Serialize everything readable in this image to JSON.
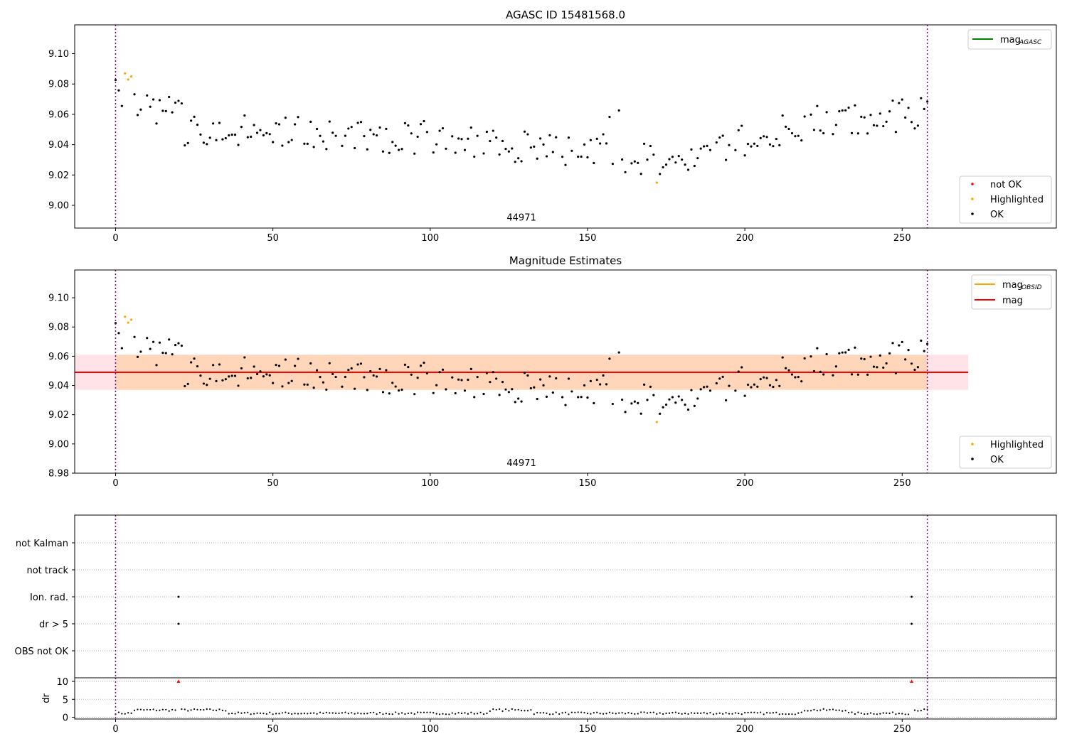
{
  "chart_data": [
    {
      "type": "scatter",
      "title": "AGASC ID 15481568.0",
      "xlim": [
        -13,
        299
      ],
      "ylim": [
        8.985,
        9.119
      ],
      "xticks": [
        0,
        50,
        100,
        150,
        200,
        250
      ],
      "yticks": [
        9.0,
        9.02,
        9.04,
        9.06,
        9.08,
        9.1
      ],
      "ytick_labels": [
        "9.00",
        "9.02",
        "9.04",
        "9.06",
        "9.08",
        "9.10"
      ],
      "vlines": [
        0,
        258
      ],
      "annotation": {
        "text": "44971",
        "x": 129,
        "y": 8.989
      },
      "legend_top": {
        "placement": "upper right",
        "entries": [
          {
            "label": "mag",
            "sub": "AGASC",
            "color": "#008000"
          }
        ]
      },
      "legend_bottom": {
        "placement": "lower right",
        "entries": [
          {
            "label": "not OK",
            "color": "#ff0000"
          },
          {
            "label": "Highlighted",
            "color": "#ffa500"
          },
          {
            "label": "OK",
            "color": "#000000"
          }
        ]
      },
      "series": [
        {
          "name": "Highlighted",
          "color": "#ffa500",
          "x": [
            3,
            4,
            5,
            172
          ],
          "y": [
            9.087,
            9.083,
            9.085,
            9.015
          ]
        }
      ]
    },
    {
      "type": "scatter",
      "title": "Magnitude Estimates",
      "xlim": [
        -13,
        299
      ],
      "ylim": [
        8.98,
        9.119
      ],
      "xticks": [
        0,
        50,
        100,
        150,
        200,
        250
      ],
      "yticks": [
        8.98,
        9.0,
        9.02,
        9.04,
        9.06,
        9.08,
        9.1
      ],
      "ytick_labels": [
        "8.98",
        "9.00",
        "9.02",
        "9.04",
        "9.06",
        "9.08",
        "9.10"
      ],
      "vlines": [
        0,
        258
      ],
      "annotation": {
        "text": "44971",
        "x": 129,
        "y": 8.984
      },
      "mag_line": {
        "value": 9.049,
        "color": "#ff0000",
        "x_range": [
          -13,
          271
        ]
      },
      "mag_band": {
        "low": 9.037,
        "high": 9.061,
        "x_range": [
          -13,
          271
        ],
        "color": "#ffc0cb"
      },
      "obsid_band": {
        "low": 9.037,
        "high": 9.061,
        "x_range": [
          0,
          258
        ],
        "color": "#ffa500"
      },
      "legend_top": {
        "placement": "upper right",
        "entries": [
          {
            "label": "mag",
            "sub": "OBSID",
            "color": "#ffa500"
          },
          {
            "label": "mag",
            "sub": "",
            "color": "#ff0000"
          }
        ]
      },
      "legend_bottom": {
        "placement": "lower right",
        "entries": [
          {
            "label": "Highlighted",
            "color": "#ffa500"
          },
          {
            "label": "OK",
            "color": "#000000"
          }
        ]
      },
      "series": [
        {
          "name": "Highlighted",
          "color": "#ffa500",
          "x": [
            3,
            4,
            5,
            172
          ],
          "y": [
            9.087,
            9.083,
            9.085,
            9.015
          ]
        }
      ]
    },
    {
      "type": "scatter",
      "title": "",
      "xlim": [
        -13,
        299
      ],
      "flag_levels": [
        "not Kalman",
        "not track",
        "Ion. rad.",
        "dr > 5",
        "OBS not OK"
      ],
      "vlines": [
        0,
        258
      ],
      "flags": [
        {
          "level": "Ion. rad.",
          "x": [
            20,
            253
          ]
        },
        {
          "level": "dr > 5",
          "x": [
            20,
            253
          ]
        }
      ]
    },
    {
      "type": "scatter",
      "title": "",
      "ylabel": "dr",
      "xlim": [
        -13,
        299
      ],
      "ylim": [
        -0.5,
        11
      ],
      "xticks": [
        0,
        50,
        100,
        150,
        200,
        250
      ],
      "yticks": [
        0,
        5,
        10
      ],
      "vlines": [
        0,
        258
      ],
      "outliers": {
        "color": "#ff0000",
        "x": [
          20,
          253
        ],
        "y": [
          10,
          10
        ]
      }
    }
  ]
}
